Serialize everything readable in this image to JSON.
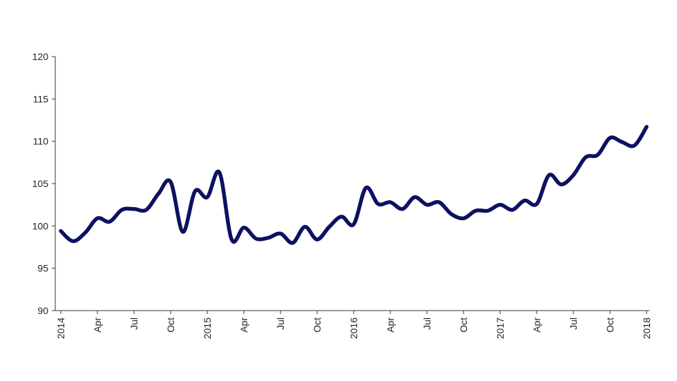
{
  "chart_data": {
    "type": "line",
    "title": "",
    "xlabel": "",
    "ylabel": "",
    "ylim": [
      90,
      120
    ],
    "yticks": [
      90,
      95,
      100,
      105,
      110,
      115,
      120
    ],
    "grid": false,
    "legend": "none",
    "x_tick_labels": [
      "2014",
      "Apr",
      "Jul",
      "Oct",
      "2015",
      "Apr",
      "Jul",
      "Oct",
      "2016",
      "Apr",
      "Jul",
      "Oct",
      "2017",
      "Apr",
      "Jul",
      "Oct",
      "2018"
    ],
    "series": [
      {
        "color": "#0d1160",
        "values": [
          99.4,
          98.2,
          99.2,
          100.9,
          100.5,
          101.9,
          102.0,
          101.9,
          103.8,
          105.2,
          99.3,
          104.1,
          103.4,
          106.3,
          98.4,
          99.8,
          98.5,
          98.6,
          99.1,
          98.0,
          99.9,
          98.4,
          99.9,
          101.1,
          100.2,
          104.5,
          102.6,
          102.8,
          102.0,
          103.4,
          102.5,
          102.8,
          101.4,
          100.9,
          101.8,
          101.8,
          102.5,
          101.9,
          103.0,
          102.6,
          106.0,
          104.9,
          106.0,
          108.1,
          108.4,
          110.4,
          109.9,
          109.5,
          111.7
        ]
      }
    ]
  }
}
